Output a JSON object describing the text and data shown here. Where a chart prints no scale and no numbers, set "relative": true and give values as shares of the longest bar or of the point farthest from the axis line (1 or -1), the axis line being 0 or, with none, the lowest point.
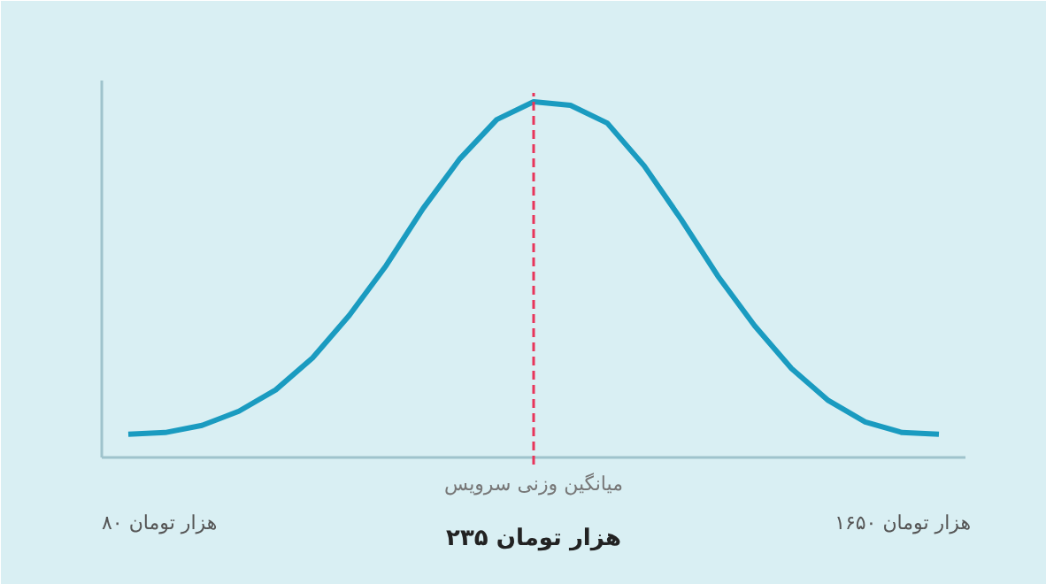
{
  "chart_data": {
    "type": "line",
    "relative": true,
    "categories": [
      null,
      null,
      null,
      null,
      null,
      null,
      null,
      null,
      null,
      null,
      null,
      null,
      null,
      null,
      null,
      null,
      null,
      null,
      null,
      null,
      null,
      null,
      null
    ],
    "series": [
      {
        "color": "#1a9bc0",
        "values": [
          0.065,
          0.07,
          0.09,
          0.13,
          0.19,
          0.28,
          0.4,
          0.54,
          0.7,
          0.84,
          0.95,
          1.0,
          0.99,
          0.94,
          0.82,
          0.67,
          0.51,
          0.37,
          0.25,
          0.16,
          0.1,
          0.07,
          0.065
        ]
      }
    ],
    "annotations": [
      "میانگین وزنی سرویس",
      "۲۳۵ هزار تومان",
      "۸۰ هزار تومان",
      "۱۶۵۰ هزار تومان"
    ],
    "grid": false,
    "marker": "none",
    "line_style": "solid"
  }
}
